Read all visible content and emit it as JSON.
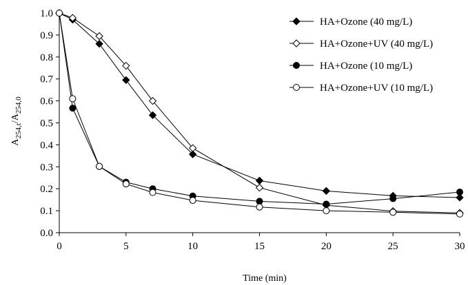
{
  "chart_data": {
    "type": "line",
    "xlabel": "Time (min)",
    "ylabel": {
      "base": "A",
      "sub1": "254,t",
      "slash": "/A",
      "sub2": "254,0"
    },
    "xlim": [
      0,
      30
    ],
    "ylim": [
      0,
      1.0
    ],
    "xticks": [
      0,
      5,
      10,
      15,
      20,
      25,
      30
    ],
    "yticks": [
      0.0,
      0.1,
      0.2,
      0.3,
      0.4,
      0.5,
      0.6,
      0.7,
      0.8,
      0.9,
      1.0
    ],
    "xtick_labels": [
      "0",
      "5",
      "10",
      "15",
      "20",
      "25",
      "30"
    ],
    "ytick_labels": [
      "0.0",
      "0.1",
      "0.2",
      "0.3",
      "0.4",
      "0.5",
      "0.6",
      "0.7",
      "0.8",
      "0.9",
      "1.0"
    ],
    "grid": false,
    "legend_position": "top-right",
    "x": [
      0,
      1,
      3,
      5,
      7,
      10,
      15,
      20,
      25,
      30
    ],
    "series": [
      {
        "name": "HA+Ozone (40 mg/L)",
        "marker": "diamond",
        "filled": true,
        "values": [
          1.0,
          0.97,
          0.86,
          0.695,
          0.535,
          0.357,
          0.237,
          0.19,
          0.168,
          0.16
        ]
      },
      {
        "name": "HA+Ozone+UV (40 mg/L)",
        "marker": "diamond",
        "filled": false,
        "values": [
          1.0,
          0.978,
          0.895,
          0.76,
          0.6,
          0.385,
          0.205,
          0.125,
          0.098,
          0.09
        ]
      },
      {
        "name": "HA+Ozone (10 mg/L)",
        "marker": "circle",
        "filled": true,
        "values": [
          1.0,
          0.567,
          0.302,
          0.23,
          0.2,
          0.167,
          0.143,
          0.13,
          0.155,
          0.185
        ]
      },
      {
        "name": "HA+Ozone+UV (10 mg/L)",
        "marker": "circle",
        "filled": false,
        "values": [
          1.0,
          0.61,
          0.302,
          0.222,
          0.183,
          0.147,
          0.117,
          0.1,
          0.093,
          0.085
        ]
      }
    ]
  }
}
